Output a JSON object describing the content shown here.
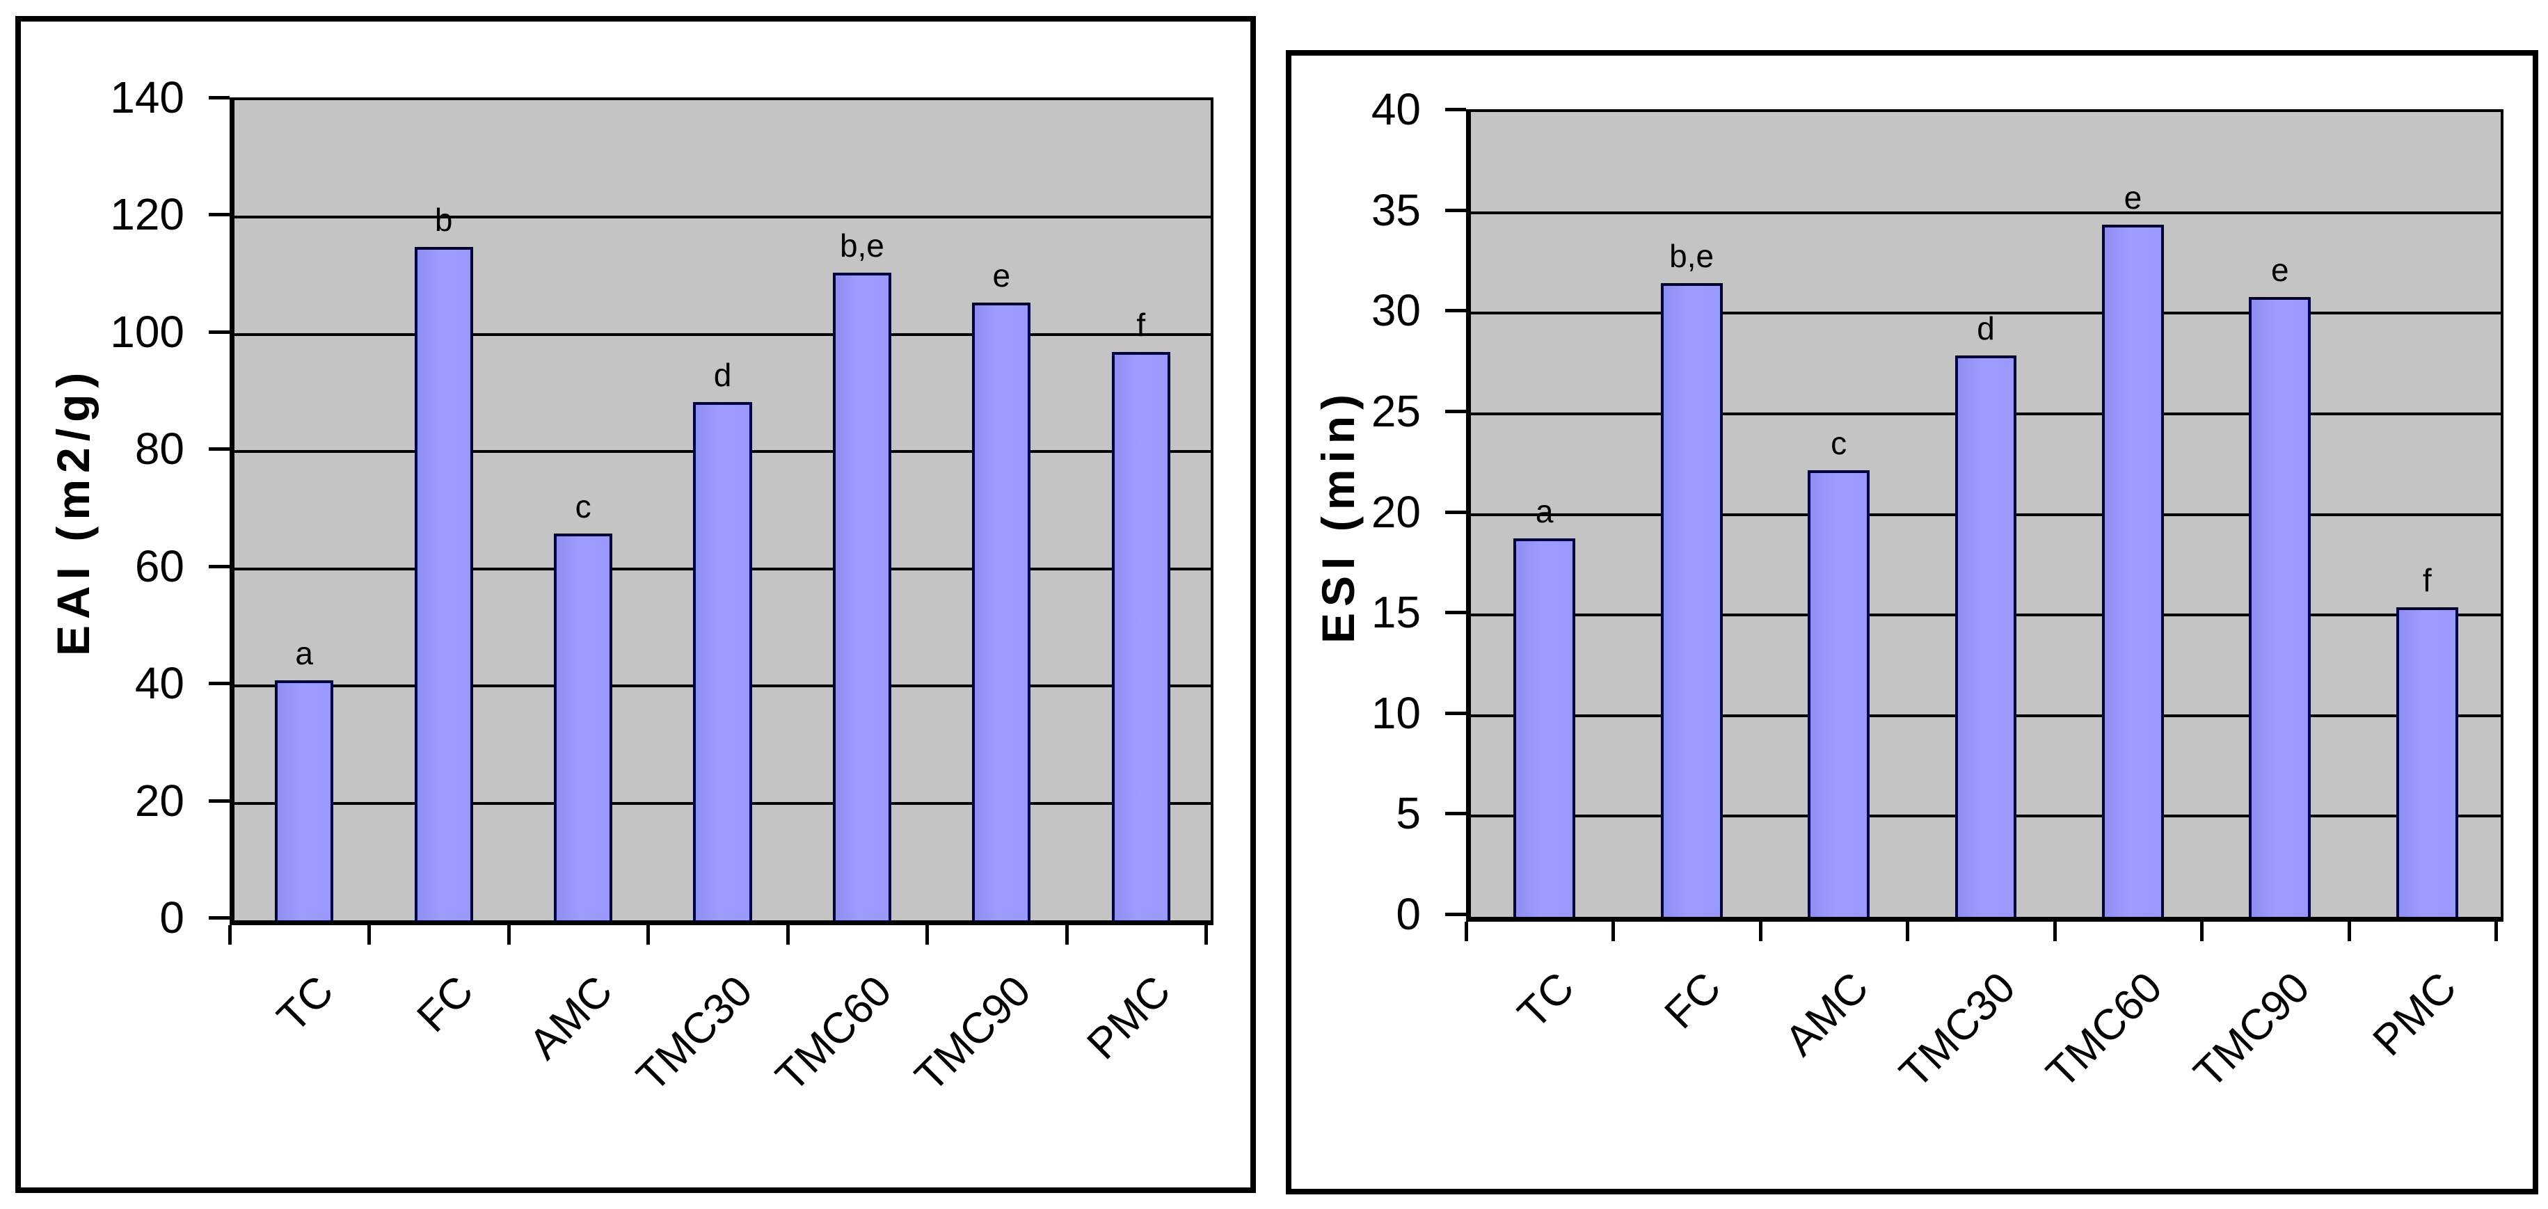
{
  "figure": {
    "description_left_axis_title": "EAI (m2/g)",
    "description_right_axis_title": "ESI (min)"
  },
  "chart_data": [
    {
      "type": "bar",
      "title": "",
      "ylabel": "EAI (m2/g)",
      "xlabel": "",
      "categories": [
        "TC",
        "FC",
        "AMC",
        "TMC30",
        "TMC60",
        "TMC90",
        "PMC"
      ],
      "values": [
        41,
        115,
        66,
        88.5,
        110.5,
        105.5,
        97
      ],
      "bar_labels": [
        "a",
        "b",
        "c",
        "d",
        "b,e",
        "e",
        "f"
      ],
      "ylim": [
        0,
        140
      ],
      "ytick_step": 20,
      "ytick_labels": [
        "0",
        "20",
        "40",
        "60",
        "80",
        "100",
        "120",
        "140"
      ],
      "legend": "none",
      "grid": "horizontal",
      "plot_bg": "#C4C4C4",
      "bar_color": "#9999FF",
      "bar_border_color": "#000040",
      "gridline_color": "#000000",
      "panel_border_color": "#000000"
    },
    {
      "type": "bar",
      "title": "",
      "ylabel": "ESI (min)",
      "xlabel": "",
      "categories": [
        "TC",
        "FC",
        "AMC",
        "TMC30",
        "TMC60",
        "TMC90",
        "PMC"
      ],
      "values": [
        18.8,
        31.5,
        22.2,
        27.9,
        34.4,
        30.8,
        15.4
      ],
      "bar_labels": [
        "a",
        "b,e",
        "c",
        "d",
        "e",
        "e",
        "f"
      ],
      "ylim": [
        0,
        40
      ],
      "ytick_step": 5,
      "ytick_labels": [
        "0",
        "5",
        "10",
        "15",
        "20",
        "25",
        "30",
        "35",
        "40"
      ],
      "legend": "none",
      "grid": "horizontal",
      "plot_bg": "#C4C4C4",
      "bar_color": "#9999FF",
      "bar_border_color": "#000040",
      "gridline_color": "#000000",
      "panel_border_color": "#000000"
    }
  ]
}
